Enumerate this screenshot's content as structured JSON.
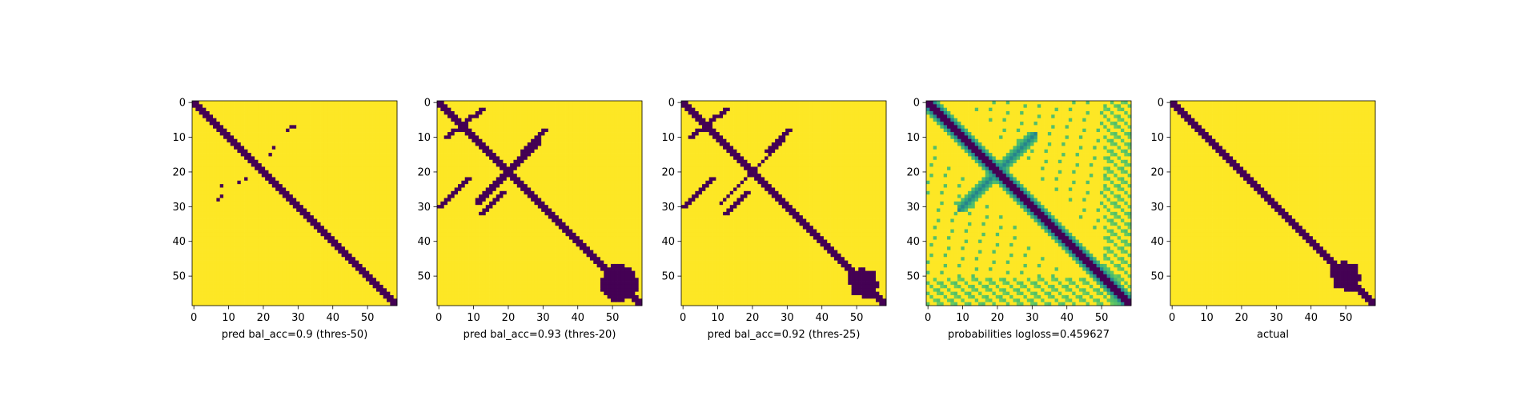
{
  "chart_data": [
    {
      "type": "heatmap",
      "title": "",
      "xlabel": "pred bal_acc=0.9 (thres-50)",
      "ylabel": "",
      "xlim": [
        0,
        58
      ],
      "ylim": [
        58,
        0
      ],
      "xticks": [
        0,
        10,
        20,
        30,
        40,
        50
      ],
      "yticks": [
        0,
        10,
        20,
        30,
        40,
        50
      ],
      "colormap": "viridis",
      "values_description_only": false,
      "background_value": 1,
      "diagonal_band": {
        "half_width": 1.5,
        "start_index": 0,
        "end_index": 58
      },
      "off_diagonal_cells": [
        [
          28,
          7
        ],
        [
          27,
          8
        ],
        [
          23,
          13
        ],
        [
          22,
          15
        ],
        [
          7,
          28
        ],
        [
          8,
          27
        ],
        [
          13,
          23
        ],
        [
          15,
          22
        ],
        [
          7,
          29
        ],
        [
          24,
          8
        ]
      ]
    },
    {
      "type": "heatmap",
      "title": "",
      "xlabel": "pred bal_acc=0.93 (thres-20)",
      "ylabel": "",
      "xlim": [
        0,
        58
      ],
      "ylim": [
        58,
        0
      ],
      "xticks": [
        0,
        10,
        20,
        30,
        40,
        50
      ],
      "yticks": [
        0,
        10,
        20,
        30,
        40,
        50
      ],
      "colormap": "viridis",
      "background_value": 1,
      "diagonal_band": {
        "half_width": 1.7,
        "start_index": 0,
        "end_index": 58
      },
      "cross_band": {
        "center": 20,
        "half_width": 1.0
      },
      "blob": {
        "center": [
          52,
          52
        ],
        "radius": 5
      }
    },
    {
      "type": "heatmap",
      "title": "",
      "xlabel": "pred bal_acc=0.92 (thres-25)",
      "ylabel": "",
      "xlim": [
        0,
        58
      ],
      "ylim": [
        58,
        0
      ],
      "xticks": [
        0,
        10,
        20,
        30,
        40,
        50
      ],
      "yticks": [
        0,
        10,
        20,
        30,
        40,
        50
      ],
      "colormap": "viridis",
      "background_value": 1,
      "diagonal_band": {
        "half_width": 1.6,
        "start_index": 0,
        "end_index": 58
      },
      "cross_band": {
        "center": 20,
        "half_width": 0.9
      },
      "blob": {
        "center": [
          52,
          52
        ],
        "radius": 4
      }
    },
    {
      "type": "heatmap",
      "title": "",
      "xlabel": "probabilities logloss=0.459627",
      "ylabel": "",
      "xlim": [
        0,
        58
      ],
      "ylim": [
        58,
        0
      ],
      "xticks": [
        0,
        10,
        20,
        30,
        40,
        50
      ],
      "yticks": [
        0,
        10,
        20,
        30,
        40,
        50
      ],
      "colormap": "viridis",
      "background_value": 1,
      "diagonal_band": {
        "half_width": 1.4,
        "start_index": 0,
        "end_index": 58
      },
      "soft_features": true
    },
    {
      "type": "heatmap",
      "title": "",
      "xlabel": "actual",
      "ylabel": "",
      "xlim": [
        0,
        58
      ],
      "ylim": [
        58,
        0
      ],
      "xticks": [
        0,
        10,
        20,
        30,
        40,
        50
      ],
      "yticks": [
        0,
        10,
        20,
        30,
        40,
        50
      ],
      "colormap": "viridis",
      "background_value": 1,
      "diagonal_band": {
        "half_width": 1.6,
        "start_index": 0,
        "end_index": 58
      },
      "blob": {
        "center": [
          50,
          50
        ],
        "radius": 4
      }
    }
  ],
  "colors": {
    "viridis_low": "#440154",
    "viridis_mid": "#21918c",
    "viridis_high": "#fde725",
    "axes": "#000000"
  }
}
